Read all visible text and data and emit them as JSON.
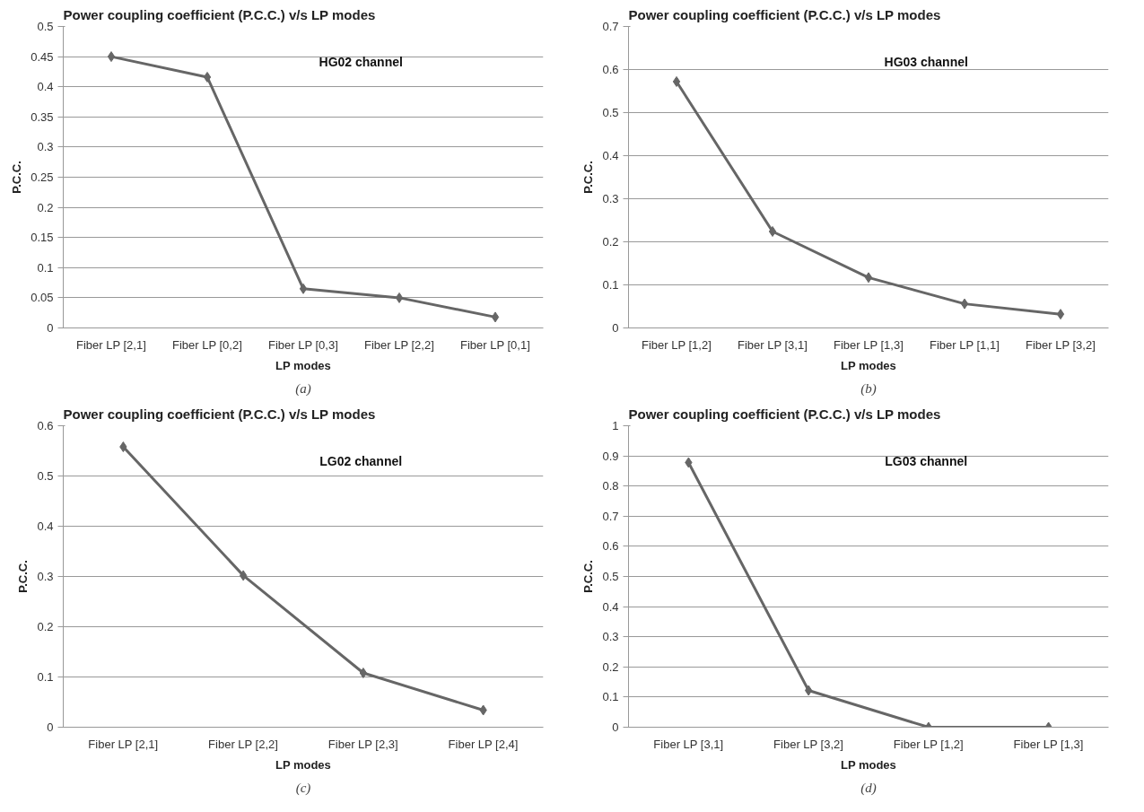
{
  "chart_data": [
    {
      "type": "line",
      "title": "Power coupling coefficient (P.C.C.) v/s LP modes",
      "xlabel": "LP modes",
      "ylabel": "P.C.C.",
      "categories": [
        "Fiber LP [2,1]",
        "Fiber LP [0,2]",
        "Fiber LP [0,3]",
        "Fiber LP [2,2]",
        "Fiber LP [0,1]"
      ],
      "values": [
        0.45,
        0.416,
        0.065,
        0.05,
        0.018
      ],
      "color": "#666666",
      "ylim": [
        0,
        0.5
      ],
      "yticks": [
        0,
        0.05,
        0.1,
        0.15,
        0.2,
        0.25,
        0.3,
        0.35,
        0.4,
        0.45,
        0.5
      ],
      "grid": "y",
      "marker": "diamond",
      "line_style": "solid",
      "annotations": [
        "HG02 channel",
        "(a)"
      ]
    },
    {
      "type": "line",
      "title": "Power coupling coefficient (P.C.C.) v/s LP modes",
      "xlabel": "LP modes",
      "ylabel": "P.C.C.",
      "categories": [
        "Fiber LP [1,2]",
        "Fiber LP [3,1]",
        "Fiber LP [1,3]",
        "Fiber LP [1,1]",
        "Fiber LP [3,2]"
      ],
      "values": [
        0.572,
        0.224,
        0.117,
        0.056,
        0.032
      ],
      "color": "#666666",
      "ylim": [
        0,
        0.7
      ],
      "yticks": [
        0,
        0.1,
        0.2,
        0.3,
        0.4,
        0.5,
        0.6,
        0.7
      ],
      "grid": "y",
      "marker": "diamond",
      "line_style": "solid",
      "annotations": [
        "HG03 channel",
        "(b)"
      ]
    },
    {
      "type": "line",
      "title": "Power coupling coefficient (P.C.C.) v/s LP modes",
      "xlabel": "LP modes",
      "ylabel": "P.C.C.",
      "categories": [
        "Fiber LP [2,1]",
        "Fiber LP [2,2]",
        "Fiber LP [2,3]",
        "Fiber LP [2,4]"
      ],
      "values": [
        0.558,
        0.302,
        0.108,
        0.034
      ],
      "color": "#666666",
      "ylim": [
        0,
        0.6
      ],
      "yticks": [
        0,
        0.1,
        0.2,
        0.3,
        0.4,
        0.5,
        0.6
      ],
      "grid": "y",
      "marker": "diamond",
      "line_style": "solid",
      "annotations": [
        "LG02 channel",
        "(c)"
      ]
    },
    {
      "type": "line",
      "title": "Power coupling coefficient (P.C.C.) v/s LP modes",
      "xlabel": "LP modes",
      "ylabel": "P.C.C.",
      "categories": [
        "Fiber LP [3,1]",
        "Fiber LP [3,2]",
        "Fiber LP [1,2]",
        "Fiber LP [1,3]"
      ],
      "values": [
        0.878,
        0.122,
        0.0,
        0.0
      ],
      "color": "#666666",
      "ylim": [
        0,
        1
      ],
      "yticks": [
        0,
        0.1,
        0.2,
        0.3,
        0.4,
        0.5,
        0.6,
        0.7,
        0.8,
        0.9,
        1
      ],
      "grid": "y",
      "marker": "diamond",
      "line_style": "solid",
      "annotations": [
        "LG03 channel",
        "(d)"
      ]
    }
  ]
}
